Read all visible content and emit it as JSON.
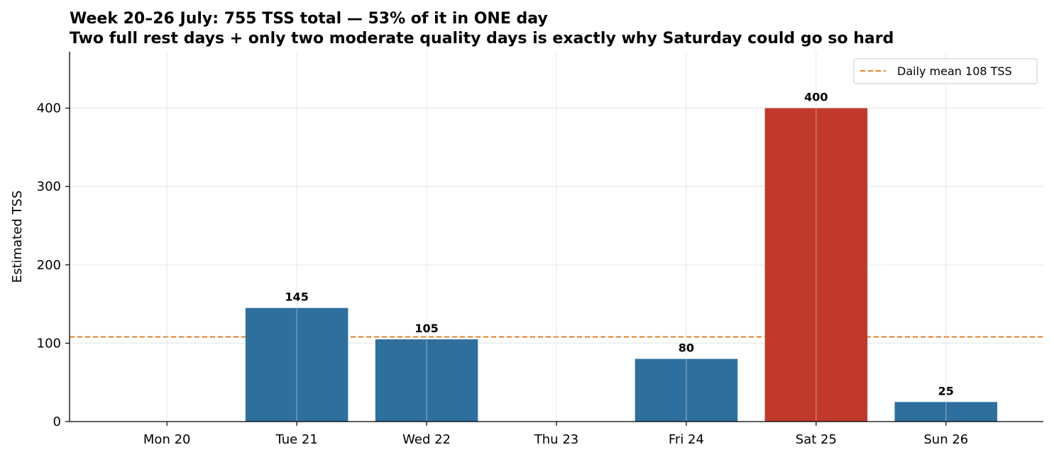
{
  "chart_data": {
    "type": "bar",
    "title": "Week 20–26 July: 755 TSS total — 53% of it in ONE day",
    "subtitle": "Two full rest days + only two moderate quality days is exactly why Saturday could go so hard",
    "xlabel": "",
    "ylabel": "Estimated TSS",
    "categories": [
      "Mon 20",
      "Tue 21",
      "Wed 22",
      "Thu 23",
      "Fri 24",
      "Sat 25",
      "Sun 26"
    ],
    "values": [
      0,
      145,
      105,
      0,
      80,
      400,
      25
    ],
    "data_labels": [
      "",
      "145",
      "105",
      "",
      "80",
      "400",
      "25"
    ],
    "highlight_index": 5,
    "ylim": [
      0,
      472
    ],
    "yticks": [
      0,
      100,
      200,
      300,
      400
    ],
    "grid": true,
    "colors": {
      "bar": "#2e6f9e",
      "highlight": "#c0392b",
      "mean_line": "#e67e22"
    },
    "reference_line": {
      "value": 108,
      "label": "Daily mean 108 TSS"
    },
    "legend_position": "top-right"
  }
}
